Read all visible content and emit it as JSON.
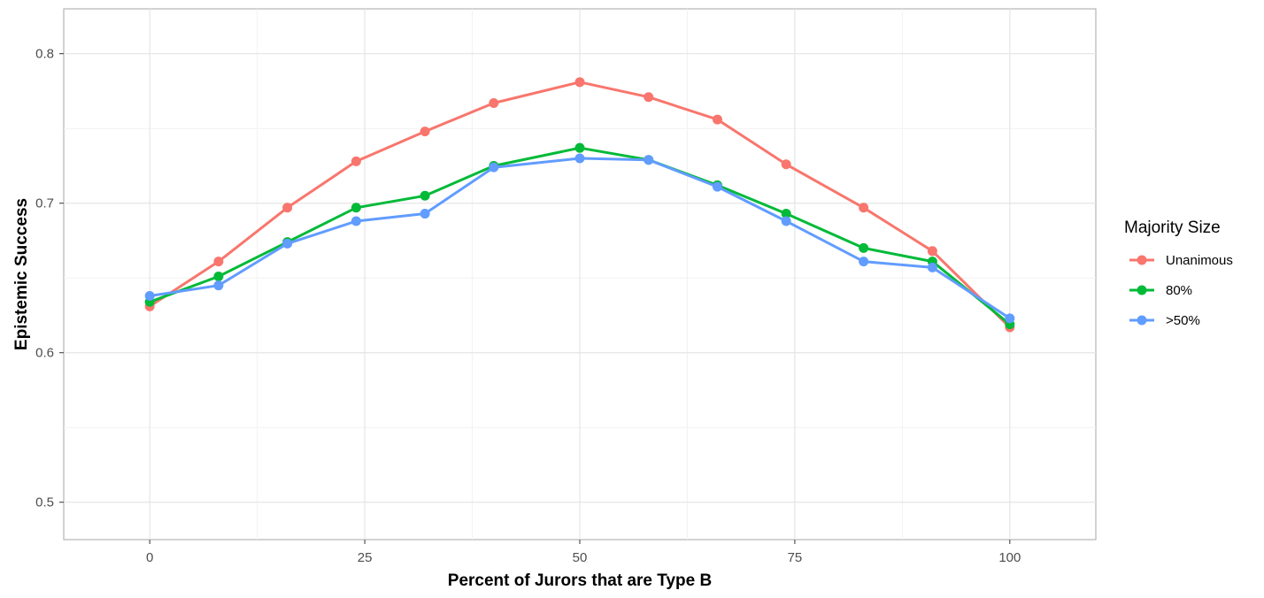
{
  "chart_data": {
    "type": "line",
    "xlabel": "Percent of Jurors that are Type B",
    "ylabel": "Epistemic Success",
    "xlim": [
      -10,
      110
    ],
    "ylim": [
      0.475,
      0.83
    ],
    "xticks": [
      0,
      25,
      50,
      75,
      100
    ],
    "xtick_labels": [
      "0",
      "25",
      "50",
      "75",
      "100"
    ],
    "yticks": [
      0.5,
      0.6,
      0.7,
      0.8
    ],
    "ytick_labels": [
      "0.5",
      "0.6",
      "0.7",
      "0.8"
    ],
    "grid": true,
    "legend": {
      "title": "Majority Size",
      "position": "right"
    },
    "x": [
      0,
      8,
      16,
      24,
      32,
      40,
      50,
      58,
      66,
      74,
      83,
      91,
      100
    ],
    "series": [
      {
        "name": "Unanimous",
        "color": "#F8766D",
        "values": [
          0.631,
          0.661,
          0.697,
          0.728,
          0.748,
          0.767,
          0.781,
          0.771,
          0.756,
          0.726,
          0.697,
          0.668,
          0.617
        ]
      },
      {
        "name": "80%",
        "color": "#00BA38",
        "values": [
          0.634,
          0.651,
          0.674,
          0.697,
          0.705,
          0.725,
          0.737,
          0.729,
          0.712,
          0.693,
          0.67,
          0.661,
          0.619
        ]
      },
      {
        "name": ">50%",
        "color": "#619CFF",
        "values": [
          0.638,
          0.645,
          0.673,
          0.688,
          0.693,
          0.724,
          0.73,
          0.729,
          0.711,
          0.688,
          0.661,
          0.657,
          0.623
        ]
      }
    ]
  }
}
